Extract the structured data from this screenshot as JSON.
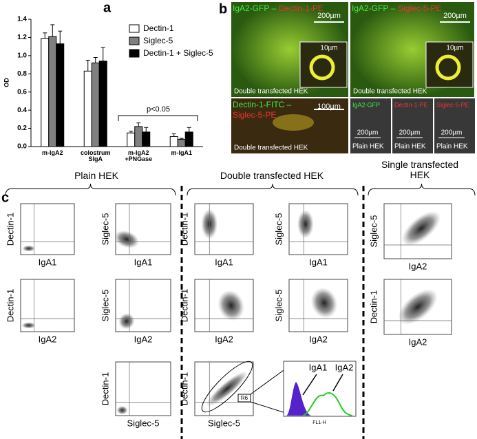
{
  "chart_data": {
    "type": "bar",
    "label": "a",
    "ylabel": "OD",
    "categories": [
      "m-IgA2",
      "colostrum\nSIgA",
      "m-IgA2\n+PNGase",
      "m-IgA1"
    ],
    "series": [
      {
        "name": "Dectin-1",
        "color": "#ffffff",
        "values": [
          1.19,
          0.83,
          0.15,
          0.11
        ],
        "errors": [
          0.06,
          0.12,
          0.02,
          0.03
        ]
      },
      {
        "name": "Siglec-5",
        "color": "#808080",
        "values": [
          1.21,
          0.92,
          0.22,
          0.08
        ],
        "errors": [
          0.13,
          0.06,
          0.04,
          0.01
        ]
      },
      {
        "name": "Dectin-1 + Siglec-5",
        "color": "#000000",
        "values": [
          1.13,
          0.94,
          0.16,
          0.16
        ],
        "errors": [
          0.14,
          0.15,
          0.05,
          0.05
        ]
      }
    ],
    "ylim": [
      0,
      1.4
    ],
    "yticks": [
      {
        "value": 0,
        "label": "0.0"
      },
      0.2,
      0.4,
      0.6,
      0.8,
      {
        "value": 1,
        "label": "1.0"
      },
      1.2,
      1.4
    ],
    "annotation": "p<0.05"
  },
  "panel_b": {
    "label": "b",
    "tiles": [
      {
        "title_green": "IgA2-GFP –",
        "title_red": "Dectin-1-PE",
        "scale": "200µm",
        "inset_scale": "10µm",
        "caption": "Double transfected HEK"
      },
      {
        "title_green": "IgA2-GFP –",
        "title_red": "Siglec-5-PE",
        "scale": "200µm",
        "inset_scale": "10µm",
        "caption": "Double transfected HEK"
      },
      {
        "title_green": "Dectin-1-FITC –",
        "title_red": "Siglec-5-PE",
        "scale": "100µm",
        "caption": "Double transfected HEK"
      }
    ],
    "controls": [
      {
        "title": "IgA2-GFP",
        "scale": "200µm",
        "caption": "Plain HEK"
      },
      {
        "title": "Dectin-1-PE",
        "scale": "200µm",
        "caption": "Plain HEK"
      },
      {
        "title": "Siglec-5-PE",
        "scale": "200µm",
        "caption": "Plain HEK"
      }
    ]
  },
  "panel_c": {
    "label": "c",
    "groups": [
      "Plain HEK",
      "Double transfected HEK",
      "Single transfected\nHEK"
    ],
    "plots": [
      {
        "y": "Dectin-1",
        "x": "IgA1"
      },
      {
        "y": "Siglec-5",
        "x": "IgA1"
      },
      {
        "y": "Dectin-1",
        "x": "IgA2"
      },
      {
        "y": "Siglec-5",
        "x": "IgA2"
      },
      {
        "y": "Dectin-1",
        "x": "Siglec-5"
      },
      {
        "y": "Dectin-1",
        "x": "IgA1"
      },
      {
        "y": "Siglec-5",
        "x": "IgA1"
      },
      {
        "y": "Dectin-1",
        "x": "IgA2"
      },
      {
        "y": "Siglec-5",
        "x": "IgA2"
      },
      {
        "y": "Dectin-1",
        "x": "Siglec-5"
      },
      {
        "y": "Siglec-5",
        "x": "IgA2"
      },
      {
        "y": "Dectin-1",
        "x": "IgA2"
      }
    ],
    "gate": "R6",
    "histogram": {
      "x": "FL1-H",
      "labels": [
        "IgA1",
        "IgA2"
      ]
    }
  }
}
